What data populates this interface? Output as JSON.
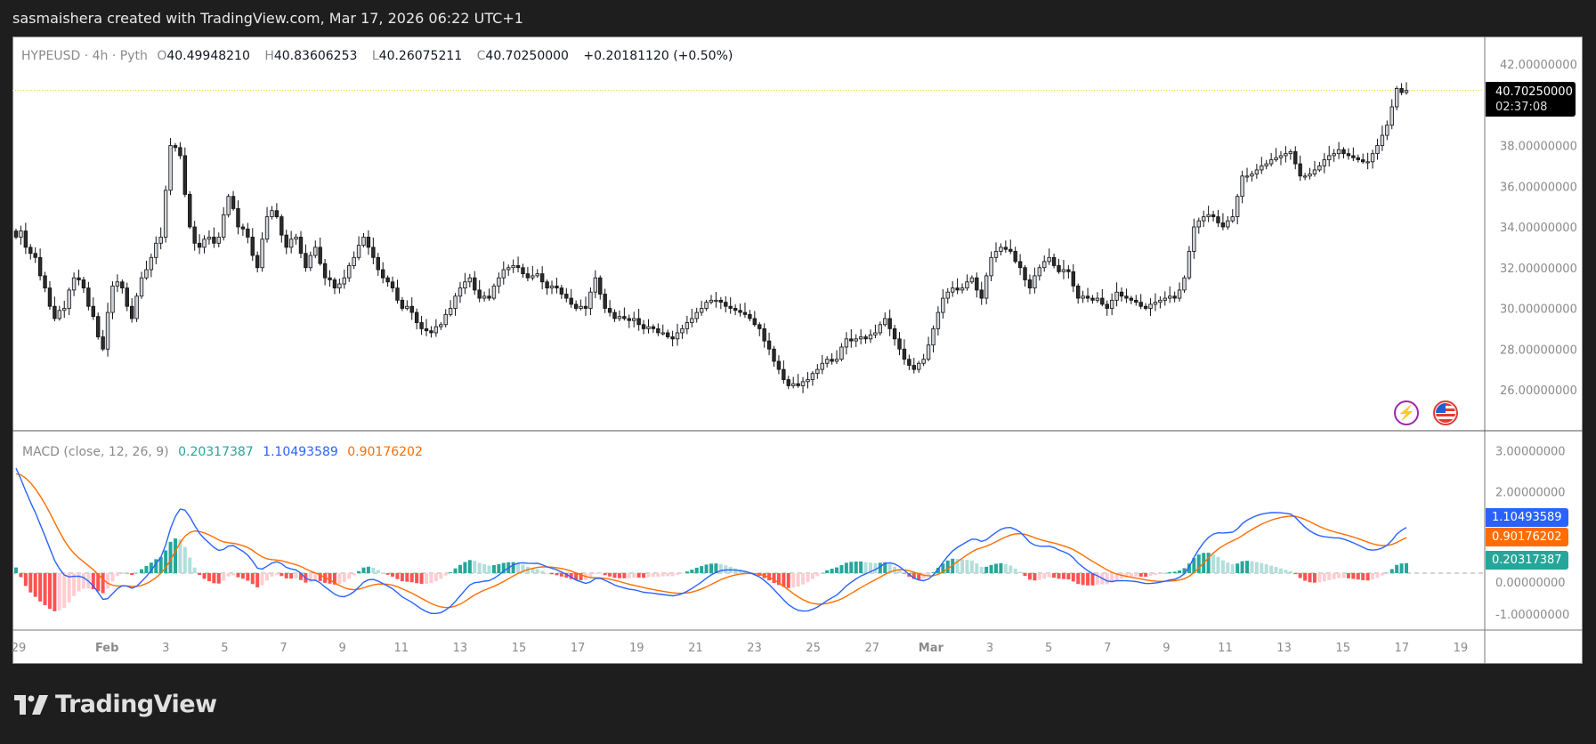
{
  "header": {
    "caption": "sasmaishera created with TradingView.com, Mar 17, 2026 06:22 UTC+1"
  },
  "legend": {
    "symbol": "HYPEUSD · 4h · Pyth",
    "open_label": "O",
    "open": "40.49948210",
    "high_label": "H",
    "high": "40.83606253",
    "low_label": "L",
    "low": "40.26075211",
    "close_label": "C",
    "close": "40.70250000",
    "change": "+0.20181120 (+0.50%)"
  },
  "price_axis": {
    "ticks": [
      "42.00000000",
      "38.00000000",
      "36.00000000",
      "34.00000000",
      "32.00000000",
      "30.00000000",
      "28.00000000",
      "26.00000000"
    ],
    "last_price": "40.70250000",
    "countdown": "02:37:08"
  },
  "macd": {
    "title": "MACD (close, 12, 26, 9)",
    "histogram": "0.20317387",
    "macd": "1.10493589",
    "signal": "0.90176202",
    "ticks": [
      "3.00000000",
      "2.00000000",
      "0.00000000",
      "-1.00000000"
    ]
  },
  "time_axis": {
    "labels": [
      "29",
      "Feb",
      "3",
      "5",
      "7",
      "9",
      "11",
      "13",
      "15",
      "17",
      "19",
      "21",
      "23",
      "25",
      "27",
      "Mar",
      "3",
      "5",
      "7",
      "9",
      "11",
      "13",
      "15",
      "17",
      "19"
    ]
  },
  "icons": {
    "lightning": "lightning-icon",
    "flag": "us-flag-icon"
  },
  "footer": {
    "logo": "TradingView"
  },
  "colors": {
    "up_fill": "#d1d4dc",
    "down_fill": "#2b2b2b",
    "macd": "#2962ff",
    "signal": "#ff6d00",
    "hist_up_strong": "#26a69a",
    "hist_up_weak": "#b2dfdb",
    "hist_down_strong": "#ff5252",
    "hist_down_weak": "#ffcdd2",
    "last_price_line": "#e6d44a"
  },
  "chart_data": {
    "type": "candlestick",
    "interval": "4h",
    "yrange": [
      25,
      42.8
    ],
    "macd_range": [
      -1.3,
      3.3
    ],
    "closes": [
      33.5,
      33.8,
      33,
      32.7,
      32.5,
      31.6,
      31,
      30.1,
      29.5,
      29.9,
      30,
      30.9,
      31.5,
      31.4,
      31,
      30.1,
      29.6,
      28.6,
      28,
      29.8,
      31.1,
      31.3,
      31,
      30.1,
      29.5,
      30.6,
      31.5,
      31.9,
      32.5,
      33.2,
      33.5,
      35.8,
      38,
      37.9,
      37.5,
      35.6,
      34,
      33.2,
      33,
      33.4,
      33.5,
      33.2,
      33.5,
      34.6,
      35.5,
      34.9,
      34,
      33.9,
      33.5,
      32.6,
      32,
      33.4,
      34.5,
      34.8,
      34.5,
      33.6,
      33,
      33.4,
      33.5,
      32.7,
      32,
      32.6,
      33,
      32.2,
      31.5,
      31.4,
      31,
      31.2,
      31.5,
      32.1,
      32.5,
      33.1,
      33.5,
      33,
      32.5,
      31.9,
      31.5,
      31.3,
      31,
      30.4,
      30,
      30.1,
      29.8,
      29.3,
      29,
      28.9,
      28.8,
      29.1,
      29.2,
      29.7,
      30,
      30.6,
      31,
      31.3,
      31.5,
      30.9,
      30.5,
      30.6,
      30.5,
      31.1,
      31.5,
      31.9,
      32,
      32.1,
      32,
      31.7,
      31.5,
      31.6,
      31.7,
      31.3,
      31,
      31.1,
      31,
      30.7,
      30.5,
      30.2,
      30,
      30.1,
      30,
      30.8,
      31.5,
      30.7,
      30,
      29.8,
      29.5,
      29.6,
      29.5,
      29.4,
      29.5,
      29.2,
      29,
      29.1,
      29,
      28.8,
      28.8,
      28.6,
      28.5,
      28.8,
      29,
      29.3,
      29.5,
      29.8,
      30,
      30.3,
      30.4,
      30.4,
      30.3,
      30.1,
      30,
      29.9,
      29.8,
      29.7,
      29.5,
      29.2,
      29,
      28.4,
      28,
      27.4,
      27,
      26.5,
      26.2,
      26.3,
      26.2,
      26.4,
      26.5,
      26.8,
      27,
      27.3,
      27.5,
      27.4,
      27.5,
      28.1,
      28.5,
      28.4,
      28.5,
      28.6,
      28.5,
      28.7,
      28.8,
      29.2,
      29.5,
      29,
      28.5,
      28,
      27.5,
      27.2,
      27,
      27.3,
      27.5,
      28.2,
      29,
      29.8,
      30.5,
      30.8,
      31,
      30.9,
      31,
      31.3,
      31.5,
      30.9,
      30.5,
      31.6,
      32.5,
      32.8,
      33,
      32.9,
      32.8,
      32.3,
      32,
      31.4,
      31,
      31.6,
      32,
      32.3,
      32.5,
      32.1,
      31.8,
      31.9,
      31.8,
      31.1,
      30.5,
      30.6,
      30.5,
      30.4,
      30.5,
      30.2,
      30,
      30.4,
      30.8,
      30.6,
      30.5,
      30.4,
      30.3,
      30.1,
      30,
      30.2,
      30.3,
      30.4,
      30.5,
      30.6,
      30.5,
      30.9,
      31.5,
      32.8,
      34,
      34.3,
      34.5,
      34.6,
      34.5,
      34.2,
      34,
      34.3,
      34.5,
      35.5,
      36.5,
      36.5,
      36.6,
      36.8,
      37,
      37.1,
      37.3,
      37.4,
      37.5,
      37.6,
      37.7,
      37.1,
      36.5,
      36.5,
      36.6,
      36.8,
      37,
      37.3,
      37.5,
      37.6,
      37.8,
      37.6,
      37.5,
      37.4,
      37.3,
      37.2,
      37.2,
      37.6,
      38,
      38.5,
      39,
      39.9,
      40.8,
      40.6,
      40.7025
    ]
  }
}
